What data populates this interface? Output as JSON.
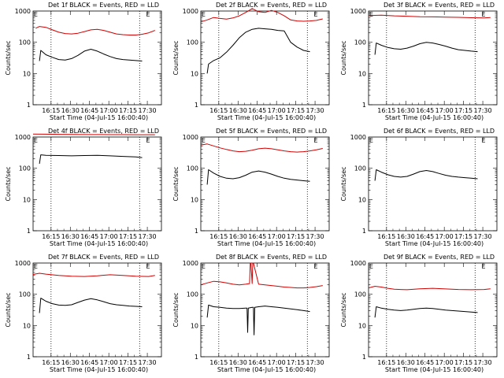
{
  "chart_data": [
    {
      "type": "line",
      "title": "Det 1f BLACK = Events, RED = LLD",
      "xlabel": "Start Time (04-Jul-15 16:00:40)",
      "ylabel": "Counts/sec",
      "xticks": [
        "16:15",
        "16:30",
        "16:45",
        "17:00",
        "17:15",
        "17:30"
      ],
      "yticks": [
        "1",
        "10",
        "100",
        "1000"
      ],
      "scale": "log",
      "marker": "E",
      "ylim": [
        1,
        1000
      ],
      "series": [
        {
          "color": "#d00000",
          "x": [
            2,
            5,
            10,
            15,
            20,
            25,
            30,
            35,
            40,
            45,
            50,
            55,
            60,
            65,
            70,
            75,
            80,
            85,
            90,
            95
          ],
          "y": [
            280,
            320,
            300,
            250,
            210,
            190,
            185,
            195,
            220,
            250,
            260,
            240,
            210,
            185,
            175,
            170,
            170,
            180,
            200,
            240
          ]
        },
        {
          "color": "#000000",
          "x": [
            5,
            6,
            10,
            15,
            20,
            25,
            30,
            35,
            40,
            45,
            50,
            55,
            60,
            65,
            70,
            75,
            80,
            85
          ],
          "y": [
            25,
            55,
            40,
            33,
            28,
            27,
            30,
            38,
            52,
            60,
            52,
            42,
            35,
            30,
            28,
            27,
            26,
            25
          ]
        }
      ]
    },
    {
      "type": "line",
      "title": "Det 2f BLACK = Events, RED = LLD",
      "xlabel": "Start Time (04-Jul-15 16:00:40)",
      "ylabel": "Counts/sec",
      "xticks": [
        "16:15",
        "16:30",
        "16:45",
        "17:00",
        "17:15",
        "17:30"
      ],
      "yticks": [
        "1",
        "10",
        "100",
        "1000"
      ],
      "scale": "log",
      "marker": "E",
      "ylim": [
        1,
        1000
      ],
      "series": [
        {
          "color": "#d00000",
          "x": [
            0,
            5,
            10,
            15,
            20,
            25,
            30,
            35,
            40,
            45,
            50,
            55,
            60,
            65,
            70,
            75,
            80,
            85,
            90,
            95
          ],
          "y": [
            450,
            520,
            620,
            580,
            550,
            600,
            700,
            900,
            1200,
            950,
            900,
            1050,
            900,
            700,
            520,
            480,
            470,
            480,
            500,
            560
          ]
        },
        {
          "color": "#000000",
          "x": [
            5,
            6,
            10,
            15,
            20,
            25,
            30,
            35,
            40,
            45,
            50,
            55,
            60,
            65,
            70,
            75,
            80,
            85
          ],
          "y": [
            10,
            20,
            26,
            32,
            48,
            80,
            140,
            210,
            260,
            280,
            270,
            260,
            240,
            230,
            100,
            70,
            55,
            50
          ]
        }
      ]
    },
    {
      "type": "line",
      "title": "Det 3f BLACK = Events, RED = LLD",
      "xlabel": "Start Time (04-Jul-15 16:00:40)",
      "ylabel": "Counts/sec",
      "xticks": [
        "16:15",
        "16:30",
        "16:45",
        "17:00",
        "17:15",
        "17:30"
      ],
      "yticks": [
        "1",
        "10",
        "100",
        "1000"
      ],
      "scale": "log",
      "marker": "E",
      "ylim": [
        1,
        1000
      ],
      "series": [
        {
          "color": "#d00000",
          "x": [
            0,
            10,
            20,
            30,
            40,
            50,
            60,
            70,
            80,
            90,
            95
          ],
          "y": [
            720,
            740,
            700,
            680,
            660,
            650,
            640,
            630,
            610,
            600,
            620
          ]
        },
        {
          "color": "#000000",
          "x": [
            5,
            6,
            10,
            15,
            20,
            25,
            30,
            35,
            40,
            45,
            50,
            55,
            60,
            65,
            70,
            75,
            80,
            85
          ],
          "y": [
            40,
            95,
            80,
            68,
            62,
            60,
            65,
            75,
            90,
            100,
            95,
            85,
            75,
            65,
            58,
            55,
            52,
            50
          ]
        }
      ]
    },
    {
      "type": "line",
      "title": "Det 4f BLACK = Events, RED = LLD",
      "xlabel": "Start Time (04-Jul-15 16:00:40)",
      "ylabel": "Counts/sec",
      "xticks": [
        "16:15",
        "16:30",
        "16:45",
        "17:00",
        "17:15",
        "17:30"
      ],
      "yticks": [
        "1",
        "10",
        "100",
        "1000"
      ],
      "scale": "log",
      "marker": "E",
      "ylim": [
        1,
        1000
      ],
      "series": [
        {
          "color": "#d00000",
          "x": [
            0,
            10,
            20,
            30,
            40,
            50,
            60,
            70,
            80,
            90,
            95
          ],
          "y": [
            1250,
            1230,
            1220,
            1210,
            1200,
            1200,
            1190,
            1190,
            1180,
            1180,
            1180
          ]
        },
        {
          "color": "#000000",
          "x": [
            5,
            6,
            10,
            20,
            30,
            40,
            50,
            60,
            70,
            80,
            85
          ],
          "y": [
            140,
            270,
            260,
            255,
            250,
            255,
            260,
            250,
            240,
            230,
            220
          ]
        }
      ]
    },
    {
      "type": "line",
      "title": "Det 5f BLACK = Events, RED = LLD",
      "xlabel": "Start Time (04-Jul-15 16:00:40)",
      "ylabel": "Counts/sec",
      "xticks": [
        "16:15",
        "16:30",
        "16:45",
        "17:00",
        "17:15",
        "17:30"
      ],
      "yticks": [
        "1",
        "10",
        "100",
        "1000"
      ],
      "scale": "log",
      "marker": "E",
      "ylim": [
        1,
        1000
      ],
      "series": [
        {
          "color": "#d00000",
          "x": [
            0,
            5,
            10,
            15,
            20,
            25,
            30,
            35,
            40,
            45,
            50,
            55,
            60,
            65,
            70,
            75,
            80,
            85,
            90,
            95
          ],
          "y": [
            550,
            600,
            520,
            450,
            400,
            360,
            340,
            350,
            380,
            420,
            440,
            420,
            390,
            360,
            340,
            330,
            340,
            360,
            390,
            430
          ]
        },
        {
          "color": "#000000",
          "x": [
            5,
            6,
            10,
            15,
            20,
            25,
            30,
            35,
            40,
            45,
            50,
            55,
            60,
            65,
            70,
            75,
            80,
            85
          ],
          "y": [
            30,
            90,
            70,
            55,
            48,
            46,
            50,
            60,
            75,
            82,
            75,
            65,
            55,
            48,
            44,
            42,
            40,
            38
          ]
        }
      ]
    },
    {
      "type": "line",
      "title": "Det 6f BLACK = Events, RED = LLD",
      "xlabel": "Start Time (04-Jul-15 16:00:40)",
      "ylabel": "Counts/sec",
      "xticks": [
        "16:15",
        "16:30",
        "16:45",
        "17:00",
        "17:15",
        "17:30"
      ],
      "yticks": [
        "1",
        "10",
        "100",
        "1000"
      ],
      "scale": "log",
      "marker": "E",
      "ylim": [
        1,
        1000
      ],
      "series": [
        {
          "color": "#000000",
          "x": [
            5,
            6,
            10,
            15,
            20,
            25,
            30,
            35,
            40,
            45,
            50,
            55,
            60,
            65,
            70,
            75,
            80,
            85
          ],
          "y": [
            40,
            90,
            75,
            62,
            55,
            52,
            55,
            65,
            78,
            85,
            78,
            68,
            60,
            55,
            52,
            50,
            48,
            46
          ]
        }
      ]
    },
    {
      "type": "line",
      "title": "Det 7f BLACK = Events, RED = LLD",
      "xlabel": "Start Time (04-Jul-15 16:00:40)",
      "ylabel": "Counts/sec",
      "xticks": [
        "16:15",
        "16:30",
        "16:45",
        "17:00",
        "17:15",
        "17:30"
      ],
      "yticks": [
        "1",
        "10",
        "100",
        "1000"
      ],
      "scale": "log",
      "marker": "E",
      "ylim": [
        1,
        1000
      ],
      "series": [
        {
          "color": "#d00000",
          "x": [
            0,
            5,
            10,
            20,
            30,
            40,
            50,
            60,
            70,
            80,
            90,
            95
          ],
          "y": [
            430,
            470,
            440,
            400,
            380,
            370,
            390,
            420,
            400,
            380,
            370,
            400
          ]
        },
        {
          "color": "#000000",
          "x": [
            5,
            6,
            10,
            15,
            20,
            25,
            30,
            35,
            40,
            45,
            50,
            55,
            60,
            65,
            70,
            75,
            80,
            85
          ],
          "y": [
            25,
            75,
            60,
            50,
            45,
            44,
            46,
            55,
            65,
            72,
            66,
            58,
            50,
            46,
            44,
            42,
            41,
            40
          ]
        }
      ]
    },
    {
      "type": "line",
      "title": "Det 8f BLACK = Events, RED = LLD",
      "xlabel": "Start Time (04-Jul-15 16:00:40)",
      "ylabel": "Counts/sec",
      "xticks": [
        "16:15",
        "16:30",
        "16:45",
        "17:00",
        "17:15",
        "17:30"
      ],
      "yticks": [
        "1",
        "10",
        "100",
        "1000"
      ],
      "scale": "log",
      "marker": "E",
      "ylim": [
        1,
        1000
      ],
      "series": [
        {
          "color": "#d00000",
          "x": [
            0,
            5,
            10,
            15,
            20,
            25,
            30,
            35,
            38,
            38.5,
            39,
            40,
            40.5,
            41,
            45,
            50,
            55,
            60,
            65,
            70,
            75,
            80,
            85,
            90,
            95
          ],
          "y": [
            200,
            230,
            260,
            250,
            230,
            210,
            200,
            210,
            220,
            1000,
            1000,
            220,
            1000,
            1000,
            210,
            200,
            190,
            180,
            170,
            165,
            160,
            160,
            165,
            175,
            190
          ]
        },
        {
          "color": "#000000",
          "x": [
            5,
            6,
            10,
            15,
            20,
            25,
            30,
            35,
            36,
            36.5,
            37,
            40,
            41,
            41.5,
            42,
            45,
            50,
            55,
            60,
            65,
            70,
            75,
            80,
            85
          ],
          "y": [
            18,
            45,
            40,
            38,
            36,
            35,
            35,
            36,
            36,
            6,
            36,
            38,
            38,
            5,
            38,
            40,
            42,
            40,
            38,
            36,
            34,
            32,
            30,
            28
          ]
        }
      ]
    },
    {
      "type": "line",
      "title": "Det 9f BLACK = Events, RED = LLD",
      "xlabel": "Start Time (04-Jul-15 16:00:40)",
      "ylabel": "Counts/sec",
      "xticks": [
        "16:15",
        "16:30",
        "16:45",
        "17:00",
        "17:15",
        "17:30"
      ],
      "yticks": [
        "1",
        "10",
        "100",
        "1000"
      ],
      "scale": "log",
      "marker": "E",
      "ylim": [
        1,
        1000
      ],
      "series": [
        {
          "color": "#d00000",
          "x": [
            0,
            5,
            10,
            15,
            20,
            30,
            40,
            50,
            60,
            70,
            80,
            90,
            95
          ],
          "y": [
            160,
            180,
            170,
            155,
            145,
            140,
            150,
            155,
            148,
            142,
            140,
            142,
            150
          ]
        },
        {
          "color": "#000000",
          "x": [
            5,
            6,
            10,
            15,
            20,
            25,
            30,
            35,
            40,
            45,
            50,
            55,
            60,
            65,
            70,
            75,
            80,
            85
          ],
          "y": [
            18,
            40,
            36,
            33,
            31,
            30,
            31,
            33,
            35,
            36,
            35,
            33,
            31,
            30,
            29,
            28,
            27,
            26
          ]
        }
      ]
    }
  ]
}
